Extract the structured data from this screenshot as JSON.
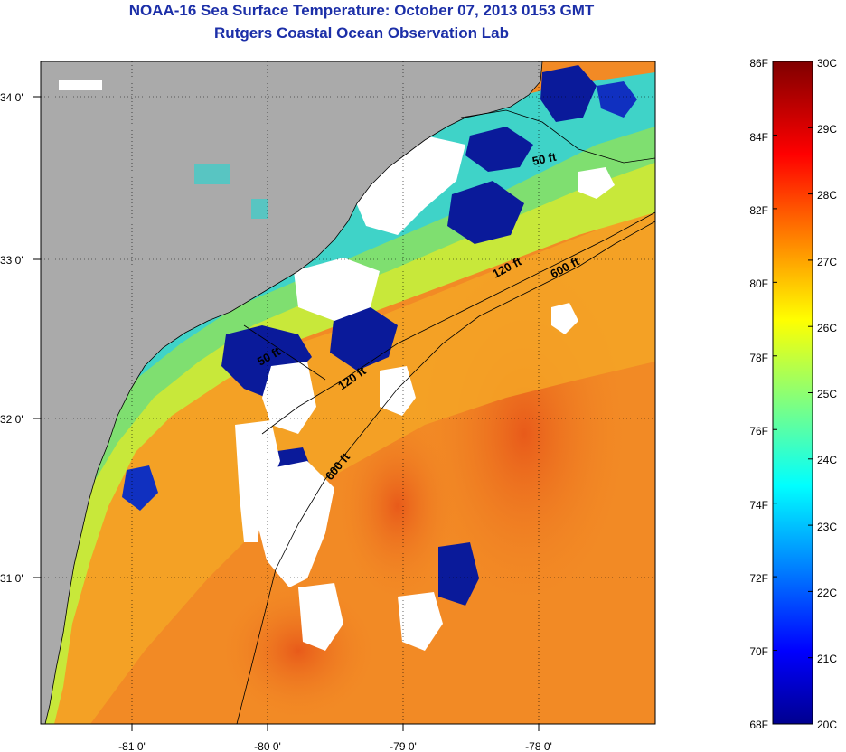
{
  "title": {
    "line1": "NOAA-16 Sea Surface Temperature:  October 07, 2013 0153 GMT",
    "line2": "Rutgers Coastal Ocean Observation Lab"
  },
  "map": {
    "lon_labels": [
      "-81 0'",
      "-80 0'",
      "-79 0'",
      "-78 0'"
    ],
    "lat_labels": [
      "34 0'",
      "33 0'",
      "32 0'",
      "31 0'"
    ],
    "lon_range": [
      -81.7,
      -77.0
    ],
    "lat_range": [
      30.2,
      34.2
    ],
    "contour_labels": [
      "50 ft",
      "120 ft",
      "600 ft",
      "120 ft",
      "600 ft",
      "50 ft"
    ],
    "colors": {
      "land": "#aaaaaa",
      "cloud": "#ffffff",
      "warm_water": "#f27a1f",
      "cool_water": "#8fe060",
      "cold_water": "#0a1a9a"
    }
  },
  "colorbar": {
    "fahrenheit_labels": [
      "86F",
      "84F",
      "82F",
      "80F",
      "78F",
      "76F",
      "74F",
      "72F",
      "70F",
      "68F"
    ],
    "celsius_labels": [
      "30C",
      "29C",
      "28C",
      "27C",
      "26C",
      "25C",
      "24C",
      "23C",
      "22C",
      "21C",
      "20C"
    ],
    "min_c": 20,
    "max_c": 30
  }
}
